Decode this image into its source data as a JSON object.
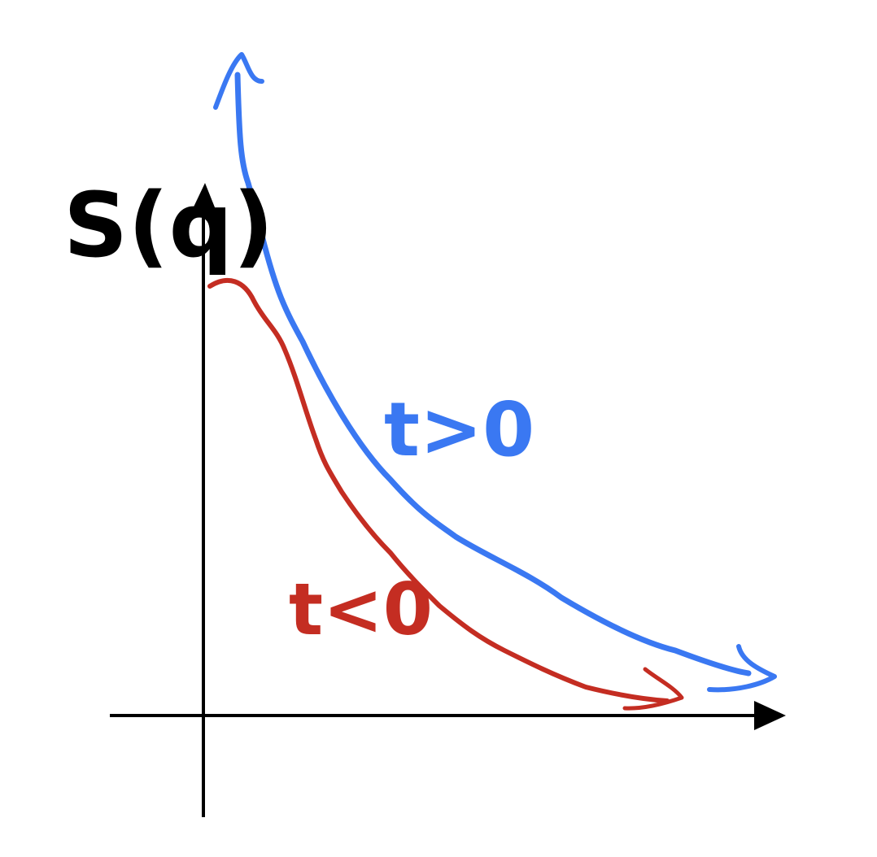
{
  "axis": {
    "y_label": "S(q)"
  },
  "curves": [
    {
      "label": "t>0"
    },
    {
      "label": "t<0"
    }
  ]
}
